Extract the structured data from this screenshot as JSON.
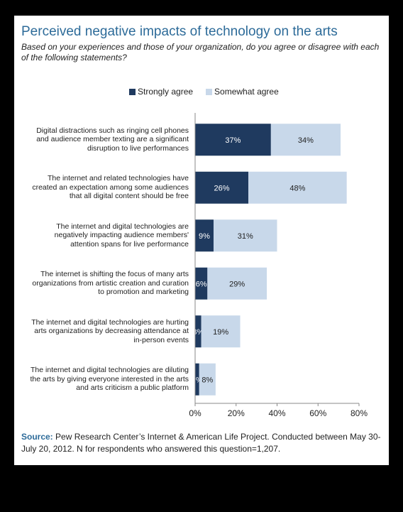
{
  "title": "Perceived negative impacts of technology on the arts",
  "subtitle": "Based on your experiences and those of your organization, do you agree or disagree with each of the following statements?",
  "source_label": "Source:",
  "source_text": "Pew Research Center’s Internet & American Life Project. Conducted between May 30-July 20, 2012. N for respondents who answered this question=1,207.",
  "colors": {
    "strongly": "#1f3a5f",
    "somewhat": "#c8d8ea",
    "title": "#2d6b99"
  },
  "chart_data": {
    "type": "bar",
    "orientation": "horizontal",
    "stacked": true,
    "categories": [
      "Digital distractions such as ringing cell phones and audience member texting are a significant disruption to live performances",
      "The internet and related technologies have created an expectation among some audiences that all digital content should be free",
      "The internet and digital technologies are negatively impacting audience members' attention spans for live performance",
      "The internet is shifting the focus of many arts organizations from artistic creation and curation to promotion and marketing",
      "The internet and digital technologies are hurting arts organizations by decreasing attendance at in-person events",
      "The internet and digital technologies are diluting the arts by giving everyone interested in the arts and arts criticism a public platform"
    ],
    "series": [
      {
        "name": "Strongly agree",
        "values": [
          37,
          26,
          9,
          6,
          3,
          2
        ],
        "labels": [
          "37%",
          "26%",
          "9%",
          "6%",
          "3%",
          "2%"
        ]
      },
      {
        "name": "Somewhat agree",
        "values": [
          34,
          48,
          31,
          29,
          19,
          8
        ],
        "labels": [
          "34%",
          "48%",
          "31%",
          "29%",
          "19%",
          "8%"
        ]
      }
    ],
    "xlim": [
      0,
      80
    ],
    "xticks": [
      "0%",
      "20%",
      "40%",
      "60%",
      "80%"
    ],
    "legend": "top"
  }
}
